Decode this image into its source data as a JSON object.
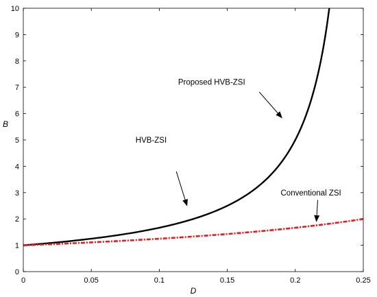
{
  "chart_data": {
    "type": "line",
    "title": "",
    "xlabel": "D",
    "ylabel": "B",
    "xlim": [
      0,
      0.25
    ],
    "ylim": [
      0,
      10
    ],
    "grid": false,
    "xticks": [
      "0",
      "0.05",
      "0.1",
      "0.15",
      "0.2",
      "0.25"
    ],
    "yticks": [
      "0",
      "1",
      "2",
      "3",
      "4",
      "5",
      "6",
      "7",
      "8",
      "9",
      "10"
    ],
    "series": [
      {
        "name": "Proposed HVB-ZSI",
        "color": "#000000",
        "style": "solid",
        "x": [
          0,
          0.02,
          0.04,
          0.06,
          0.08,
          0.1,
          0.12,
          0.14,
          0.16,
          0.17,
          0.18,
          0.19,
          0.2,
          0.205,
          0.21,
          0.215
        ],
        "y": [
          1.0,
          1.09,
          1.19,
          1.32,
          1.47,
          1.67,
          1.92,
          2.27,
          2.78,
          3.13,
          3.57,
          4.17,
          5.0,
          5.6,
          6.35,
          7.4
        ]
      },
      {
        "name": "Conventional ZSI",
        "color": "#e8191c",
        "style": "dashdot",
        "x": [
          0,
          0.025,
          0.05,
          0.075,
          0.1,
          0.125,
          0.15,
          0.175,
          0.2,
          0.225,
          0.25
        ],
        "y": [
          1.0,
          1.05,
          1.11,
          1.18,
          1.25,
          1.33,
          1.43,
          1.54,
          1.67,
          1.82,
          2.0
        ]
      }
    ],
    "annotations": [
      {
        "text": "Proposed HVB-ZSI",
        "x_data": 0.1385,
        "y_data": 7.2
      },
      {
        "text": "HVB-ZSI",
        "x_data": 0.094,
        "y_data": 5.0
      },
      {
        "text": "Conventional ZSI",
        "x_data": 0.2115,
        "y_data": 3.0
      }
    ],
    "arrows": [
      {
        "from": [
          0.1735,
          6.82
        ],
        "to": [
          0.1905,
          5.82
        ]
      },
      {
        "from": [
          0.1125,
          3.8
        ],
        "to": [
          0.1205,
          2.48
        ]
      },
      {
        "from": [
          0.2165,
          2.72
        ],
        "to": [
          0.2155,
          1.88
        ]
      }
    ]
  }
}
